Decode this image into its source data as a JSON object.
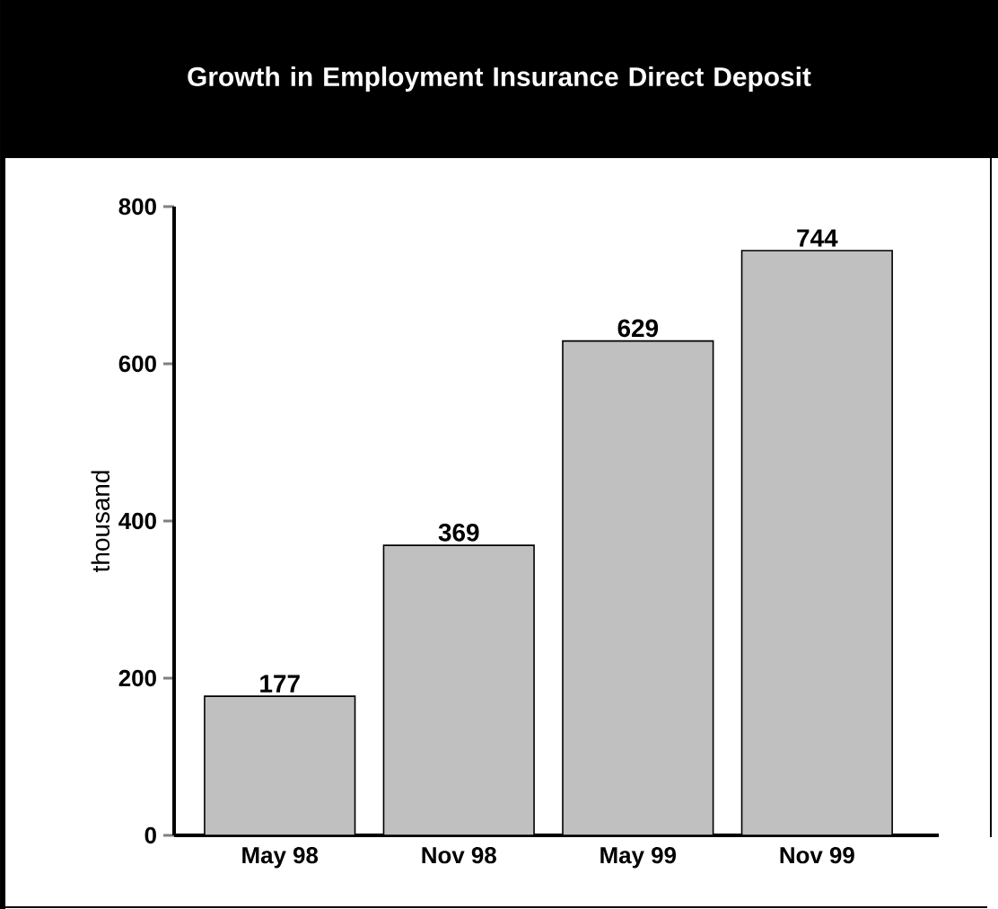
{
  "chart_data": {
    "type": "bar",
    "title": "Growth in Employment Insurance Direct Deposit",
    "ylabel": "thousand",
    "categories": [
      "May 98",
      "Nov 98",
      "May 99",
      "Nov 99"
    ],
    "values": [
      177,
      369,
      629,
      744
    ],
    "color": "#c0c0c0",
    "ylim": [
      0,
      800
    ],
    "yticks": [
      0,
      200,
      400,
      600,
      800
    ],
    "data_labels": true
  }
}
